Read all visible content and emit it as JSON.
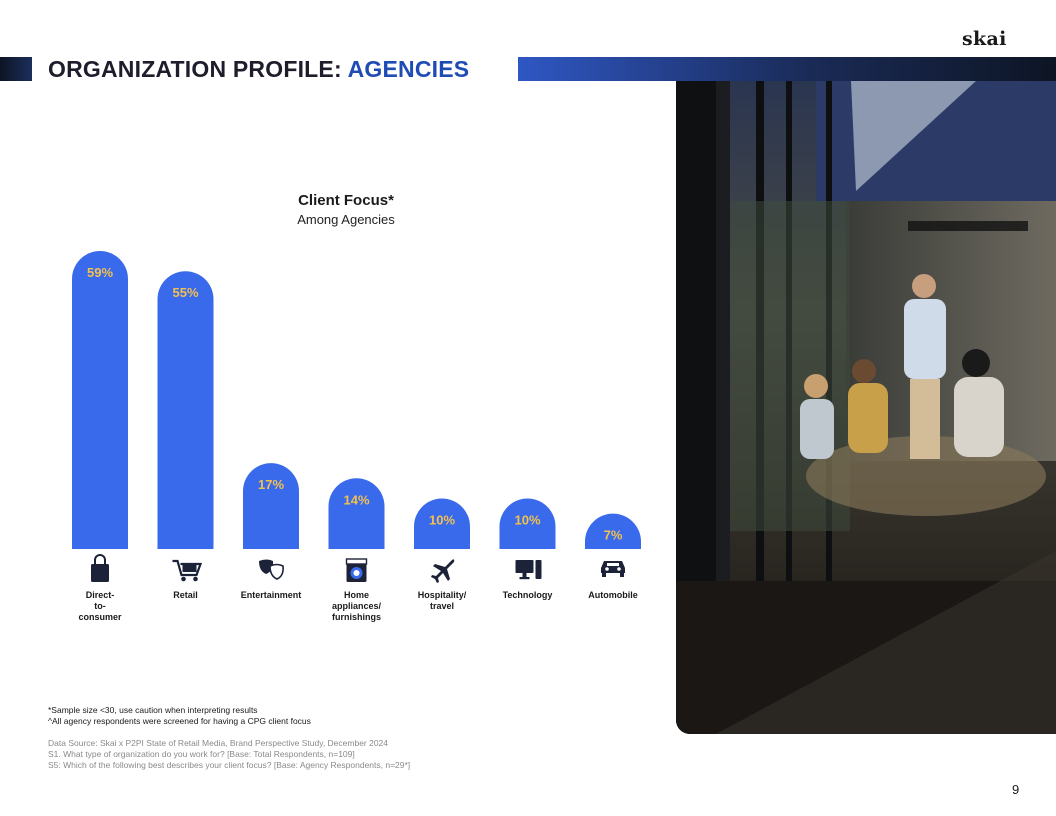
{
  "header": {
    "logo_text": "skai",
    "title_main": "ORGANIZATION PROFILE: ",
    "title_accent": "AGENCIES"
  },
  "colors": {
    "bar": "#3a6aec",
    "value_label": "#f2c14e",
    "title_accent": "#1f4bb4",
    "icon": "#1c2238"
  },
  "chart_data": {
    "type": "bar",
    "title": "Client Focus*",
    "subtitle": "Among Agencies",
    "categories": [
      "Direct-\nto-\nconsumer",
      "Retail",
      "Entertainment",
      "Home\nappliances/\nfurnishings",
      "Hospitality/\ntravel",
      "Technology",
      "Automobile"
    ],
    "icons": [
      "shopping-bag-icon",
      "shopping-cart-icon",
      "theater-masks-icon",
      "washing-machine-icon",
      "airplane-icon",
      "desktop-computer-icon",
      "car-icon"
    ],
    "values": [
      59,
      55,
      17,
      14,
      10,
      10,
      7
    ],
    "value_labels": [
      "59%",
      "55%",
      "17%",
      "14%",
      "10%",
      "10%",
      "7%"
    ],
    "unit": "%",
    "ylim": [
      0,
      60
    ],
    "grid": false
  },
  "footnotes": [
    "*Sample size <30, use caution when interpreting results",
    "^All agency respondents were screened for having a CPG client focus"
  ],
  "sources": [
    "Data Source: Skai x P2PI State of Retail Media, Brand Perspective Study, December 2024",
    "S1. What type of organization do you work for? [Base: Total Respondents, n=109]",
    "S5: Which of the following best describes your client focus? [Base: Agency Respondents, n=29*]"
  ],
  "page_number": "9"
}
